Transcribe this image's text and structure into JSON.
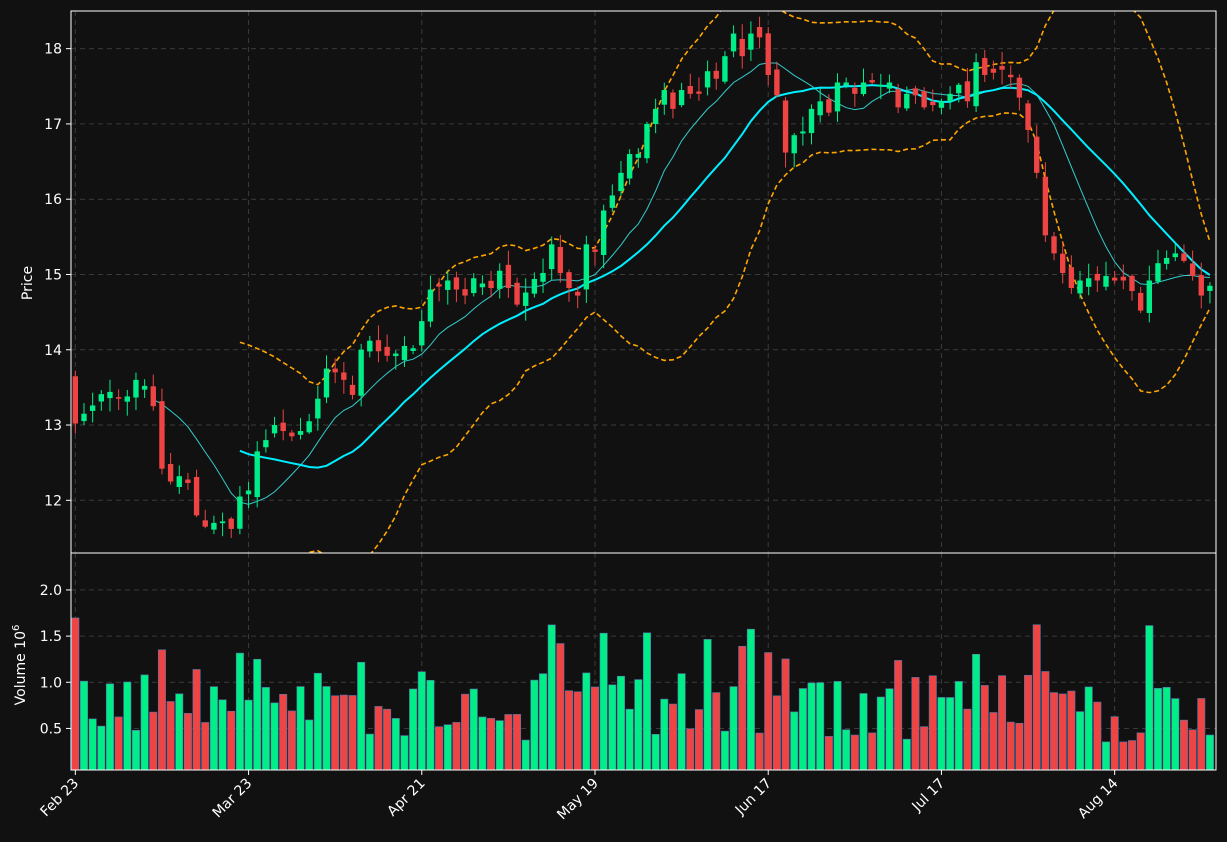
{
  "chart_data": {
    "type": "candlestick",
    "x_tick_labels": [
      "Feb 23",
      "Mar 23",
      "Apr 21",
      "May 19",
      "Jun 17",
      "Jul 17",
      "Aug 14"
    ],
    "x_tick_indices": [
      0,
      20,
      40,
      60,
      80,
      100,
      120
    ],
    "price_panel": {
      "ylabel": "Price",
      "ylim": [
        11.3,
        18.5
      ],
      "yticks": [
        12,
        13,
        14,
        15,
        16,
        17,
        18
      ],
      "grid": true
    },
    "volume_panel": {
      "ylabel": "Volume",
      "ylabel_exponent": "10",
      "ylabel_exponent_power": "6",
      "ylim": [
        0.05,
        2.4
      ],
      "yticks": [
        0.5,
        1.0,
        1.5,
        2.0
      ],
      "ytick_labels": [
        "0.5",
        "1.0",
        "1.5",
        "2.0"
      ],
      "grid": true
    },
    "colors": {
      "background": "#111111",
      "up": "#00ee88",
      "down": "#ee4444",
      "ma_fast": "#33cccc",
      "ma_slow": "#00eeff",
      "bollinger": "#ffa500",
      "grid": "#3a3a3a",
      "axis": "#ffffff"
    },
    "close": [
      13.02,
      13.15,
      13.26,
      13.41,
      13.44,
      13.35,
      13.38,
      13.6,
      13.52,
      13.25,
      12.42,
      12.25,
      12.32,
      12.23,
      11.8,
      11.65,
      11.7,
      11.72,
      11.62,
      12.05,
      12.13,
      12.65,
      12.8,
      13.0,
      12.92,
      12.85,
      12.92,
      13.05,
      13.35,
      13.75,
      13.7,
      13.6,
      13.4,
      14.0,
      14.12,
      13.98,
      13.92,
      13.95,
      14.05,
      14.02,
      14.38,
      14.8,
      14.84,
      14.92,
      14.8,
      14.72,
      14.95,
      14.88,
      14.82,
      15.05,
      14.82,
      14.6,
      14.76,
      14.94,
      15.02,
      15.4,
      15.02,
      14.82,
      14.72,
      15.4,
      15.3,
      15.85,
      16.05,
      16.35,
      16.6,
      16.6,
      17.0,
      17.2,
      17.45,
      17.2,
      17.45,
      17.4,
      17.4,
      17.7,
      17.6,
      17.9,
      18.2,
      17.9,
      18.2,
      18.15,
      17.65,
      17.38,
      16.62,
      16.85,
      16.9,
      17.2,
      17.3,
      17.15,
      17.55,
      17.55,
      17.4,
      17.55,
      17.55,
      17.52,
      17.55,
      17.22,
      17.4,
      17.38,
      17.22,
      17.25,
      17.3,
      17.4,
      17.52,
      17.3,
      17.82,
      17.65,
      17.68,
      17.72,
      17.62,
      17.35,
      16.92,
      16.35,
      15.52,
      15.28,
      15.02,
      14.82,
      14.92,
      14.95,
      14.92,
      14.98,
      14.92,
      14.92,
      14.78,
      14.52,
      14.92,
      15.15,
      15.22,
      15.28,
      15.18,
      14.98,
      14.72,
      14.85
    ]
  }
}
